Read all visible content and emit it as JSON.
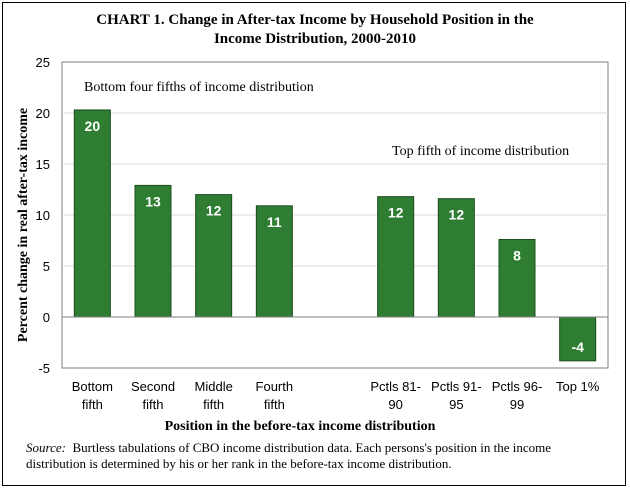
{
  "chart_data": {
    "type": "bar",
    "title_line1": "CHART 1. Change in After-tax Income by Household Position in the",
    "title_line2": "Income Distribution,  2000-2010",
    "ylabel": "Percent change in real after-tax income",
    "xlabel": "Position in the before-tax income distribution",
    "ylim": [
      -5,
      25
    ],
    "yticks": [
      -5,
      0,
      5,
      10,
      15,
      20,
      25
    ],
    "grid": true,
    "categories": [
      [
        "Bottom",
        "fifth"
      ],
      [
        "Second",
        "fifth"
      ],
      [
        "Middle",
        "fifth"
      ],
      [
        "Fourth",
        "fifth"
      ],
      [
        "Pctls 81-",
        "90"
      ],
      [
        "Pctls 91-",
        "95"
      ],
      [
        "Pctls 96-",
        "99"
      ],
      [
        "Top 1%"
      ]
    ],
    "values": [
      20.3,
      12.9,
      12.0,
      10.9,
      11.8,
      11.6,
      7.6,
      -4.3
    ],
    "data_labels": [
      "20",
      "13",
      "12",
      "11",
      "12",
      "12",
      "8",
      "-4"
    ],
    "annotations": {
      "left": "Bottom four fifths of income distribution",
      "right": "Top fifth of income distribution"
    },
    "bar_color": "#2e7d32",
    "bar_edge_color": "#1b4d1e"
  },
  "source": {
    "label": "Source:",
    "text": "Burtless tabulations of CBO income distribution  data.  Each persons's position in the income distribution   is determined by his or her rank in the before-tax income distribution."
  }
}
